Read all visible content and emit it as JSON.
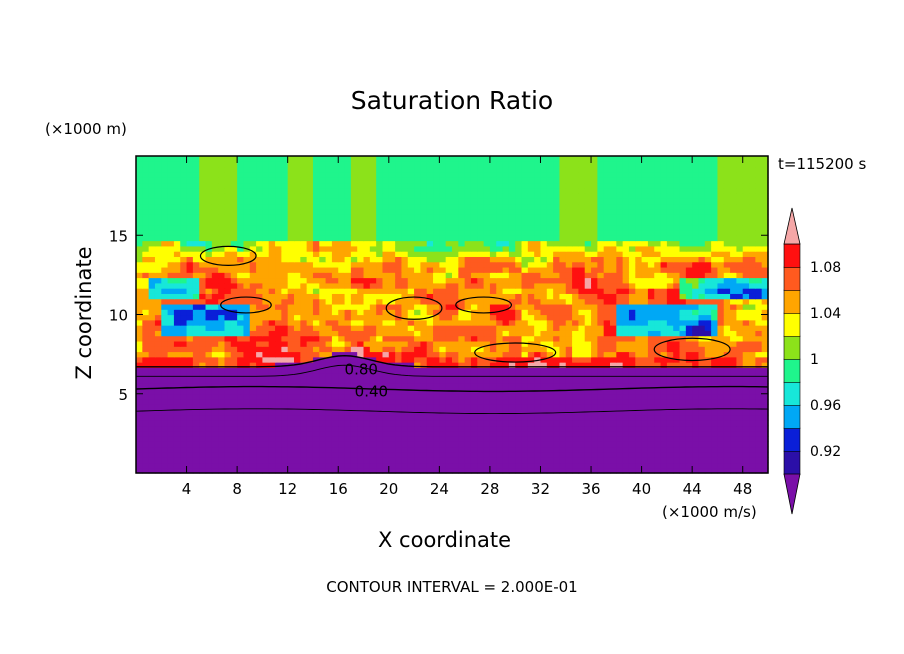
{
  "chart_data": {
    "type": "heatmap",
    "title": "Saturation Ratio",
    "xlabel": "X coordinate",
    "ylabel": "Z coordinate",
    "x_unit": "(×1000 m/s)",
    "y_unit": "(×1000 m)",
    "time_label": "t=115200 s",
    "contour_interval_label": "CONTOUR INTERVAL = 2.000E-01",
    "xlim": [
      0,
      50
    ],
    "ylim": [
      0,
      20
    ],
    "x_ticks": [
      4,
      8,
      12,
      16,
      20,
      24,
      28,
      32,
      36,
      40,
      44,
      48
    ],
    "y_ticks": [
      5,
      10,
      15
    ],
    "contour_labels": [
      {
        "text": "0.80",
        "x": 16.5,
        "z": 6.6
      },
      {
        "text": "0.40",
        "x": 17.3,
        "z": 5.2
      }
    ],
    "colorbar": {
      "levels": [
        0.9,
        0.92,
        0.94,
        0.96,
        0.98,
        1.0,
        1.02,
        1.04,
        1.06,
        1.08,
        1.1
      ],
      "tick_labels": [
        {
          "text": "0.92",
          "value": 0.92
        },
        {
          "text": "0.96",
          "value": 0.96
        },
        {
          "text": "1",
          "value": 1.0
        },
        {
          "text": "1.04",
          "value": 1.04
        },
        {
          "text": "1.08",
          "value": 1.08
        }
      ],
      "colors": [
        "#7a0fa8",
        "#2b0fa8",
        "#0a1fd8",
        "#00a8f5",
        "#17e7d9",
        "#1ff58c",
        "#8ce21a",
        "#ffff00",
        "#ffa500",
        "#ff5a1f",
        "#ff1010",
        "#f5a7a7"
      ]
    }
  }
}
